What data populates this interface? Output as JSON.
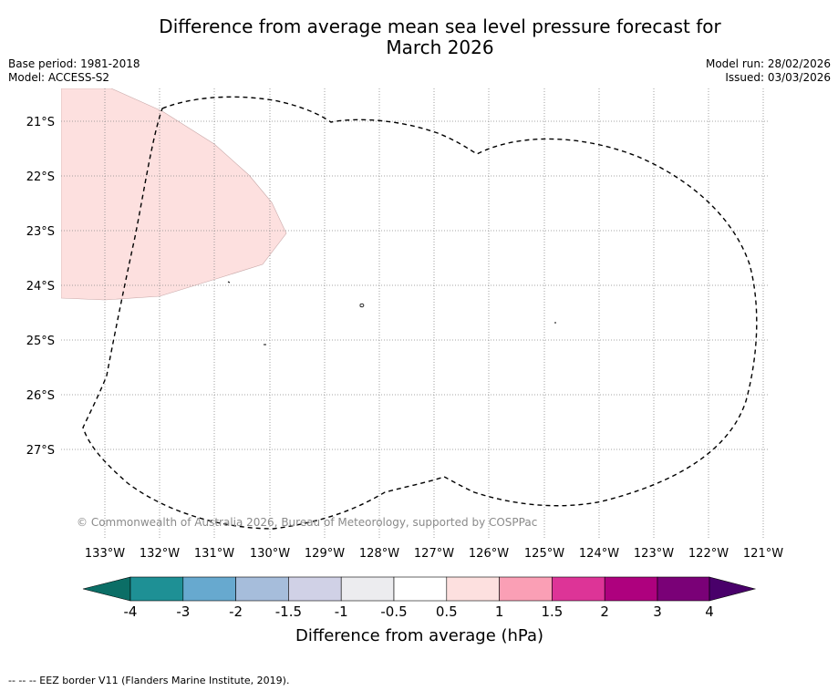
{
  "title": {
    "line1": "Difference from average mean sea level pressure forecast for",
    "line2": "March 2026"
  },
  "meta": {
    "base_period": "Base period: 1981-2018",
    "model": "Model: ACCESS-S2",
    "model_run": "Model run: 28/02/2026",
    "issued": "Issued: 03/03/2026"
  },
  "map": {
    "lat_labels": [
      "21°S",
      "22°S",
      "23°S",
      "24°S",
      "25°S",
      "26°S",
      "27°S"
    ],
    "lon_labels": [
      "133°W",
      "132°W",
      "131°W",
      "130°W",
      "129°W",
      "128°W",
      "127°W",
      "126°W",
      "125°W",
      "124°W",
      "123°W",
      "122°W",
      "121°W"
    ],
    "copyright": "© Commonwealth of Australia 2026, Bureau of Meteorology, supported by COSPPac",
    "anomaly_fill_color": "#fde0df",
    "eez_line_color": "#000000"
  },
  "colorbar": {
    "title": "Difference from average (hPa)",
    "ticks": [
      "-4",
      "-3",
      "-2",
      "-1.5",
      "-1",
      "-0.5",
      "0.5",
      "1",
      "1.5",
      "2",
      "3",
      "4"
    ],
    "colors": [
      "#0b6e66",
      "#1e9095",
      "#67a9cf",
      "#a6bddb",
      "#d0d1e6",
      "#ececef",
      "#ffffff",
      "#fde0df",
      "#fa9fb5",
      "#dd3497",
      "#ae017e",
      "#7a0177",
      "#49006a"
    ]
  },
  "footer": {
    "legend": "--  --  -- EEZ border V11 (Flanders Marine Institute, 2019)."
  }
}
